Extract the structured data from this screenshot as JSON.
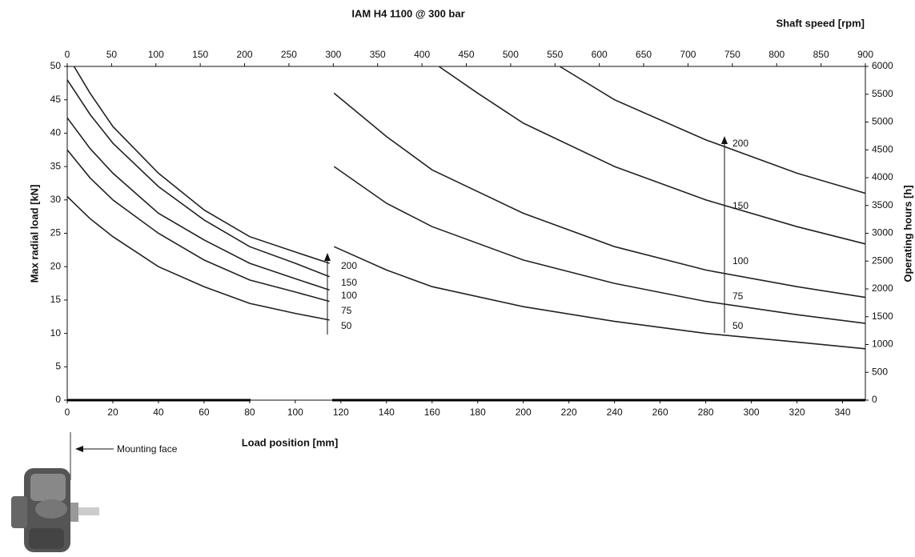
{
  "chart_data": {
    "type": "line",
    "title": "IAM H4 1100 @ 300 bar",
    "x_label": "Load position [mm]",
    "x2_label": "Shaft speed [rpm]",
    "y_label": "Max radial load [kN]",
    "y2_label": "Operating hours [h]",
    "annotation": "Mounting face",
    "color": "#222222",
    "xlim": [
      0,
      350
    ],
    "xticks": [
      0,
      20,
      40,
      60,
      80,
      100,
      120,
      140,
      160,
      180,
      200,
      220,
      240,
      260,
      280,
      300,
      320,
      340
    ],
    "x2lim": [
      0,
      900
    ],
    "x2ticks": [
      0,
      50,
      100,
      150,
      200,
      250,
      300,
      350,
      400,
      450,
      500,
      550,
      600,
      650,
      700,
      750,
      800,
      850,
      900
    ],
    "ylim": [
      0,
      50
    ],
    "yticks": [
      0,
      5,
      10,
      15,
      20,
      25,
      30,
      35,
      40,
      45,
      50
    ],
    "y2lim": [
      0,
      6000
    ],
    "y2ticks": [
      0,
      500,
      1000,
      1500,
      2000,
      2500,
      3000,
      3500,
      4000,
      4500,
      5000,
      5500,
      6000
    ],
    "series": [
      {
        "name": "50",
        "x": [
          0,
          10,
          20,
          40,
          60,
          80,
          100,
          115
        ],
        "values": [
          30.5,
          27.2,
          24.5,
          20,
          17,
          14.5,
          13,
          12
        ]
      },
      {
        "name": "75",
        "x": [
          0,
          10,
          20,
          40,
          60,
          80,
          100,
          115
        ],
        "values": [
          37.5,
          33.3,
          30,
          25,
          21,
          18,
          16.2,
          14.8
        ]
      },
      {
        "name": "100",
        "x": [
          0,
          10,
          20,
          40,
          60,
          80,
          100,
          115
        ],
        "values": [
          42.3,
          37.7,
          34,
          28,
          24,
          20.5,
          18.2,
          16.5
        ]
      },
      {
        "name": "150",
        "x": [
          0,
          10,
          20,
          40,
          60,
          80,
          100,
          115
        ],
        "values": [
          48,
          42.8,
          38.5,
          32,
          27,
          23,
          20.5,
          18.5
        ]
      },
      {
        "name": "200",
        "x": [
          3,
          10,
          20,
          40,
          60,
          80,
          100,
          115
        ],
        "values": [
          50,
          46,
          41,
          34,
          28.5,
          24.5,
          22.2,
          20.5
        ]
      },
      {
        "name": "50",
        "x": [
          117,
          140,
          160,
          200,
          240,
          280,
          320,
          350
        ],
        "values": [
          23,
          19.5,
          17,
          14,
          11.8,
          10,
          8.7,
          7.7
        ]
      },
      {
        "name": "75",
        "x": [
          117,
          140,
          160,
          200,
          240,
          280,
          320,
          350
        ],
        "values": [
          35,
          29.5,
          26,
          21,
          17.5,
          14.8,
          12.8,
          11.5
        ]
      },
      {
        "name": "100",
        "x": [
          117,
          140,
          160,
          200,
          240,
          280,
          320,
          350
        ],
        "values": [
          46,
          39.5,
          34.5,
          28,
          23,
          19.5,
          17,
          15.4
        ]
      },
      {
        "name": "150",
        "x": [
          163,
          180,
          200,
          240,
          280,
          320,
          350
        ],
        "values": [
          50,
          46,
          41.5,
          35,
          30,
          26,
          23.4
        ]
      },
      {
        "name": "200",
        "x": [
          216,
          240,
          280,
          320,
          350
        ],
        "values": [
          50,
          45,
          39,
          34,
          31
        ]
      }
    ]
  }
}
